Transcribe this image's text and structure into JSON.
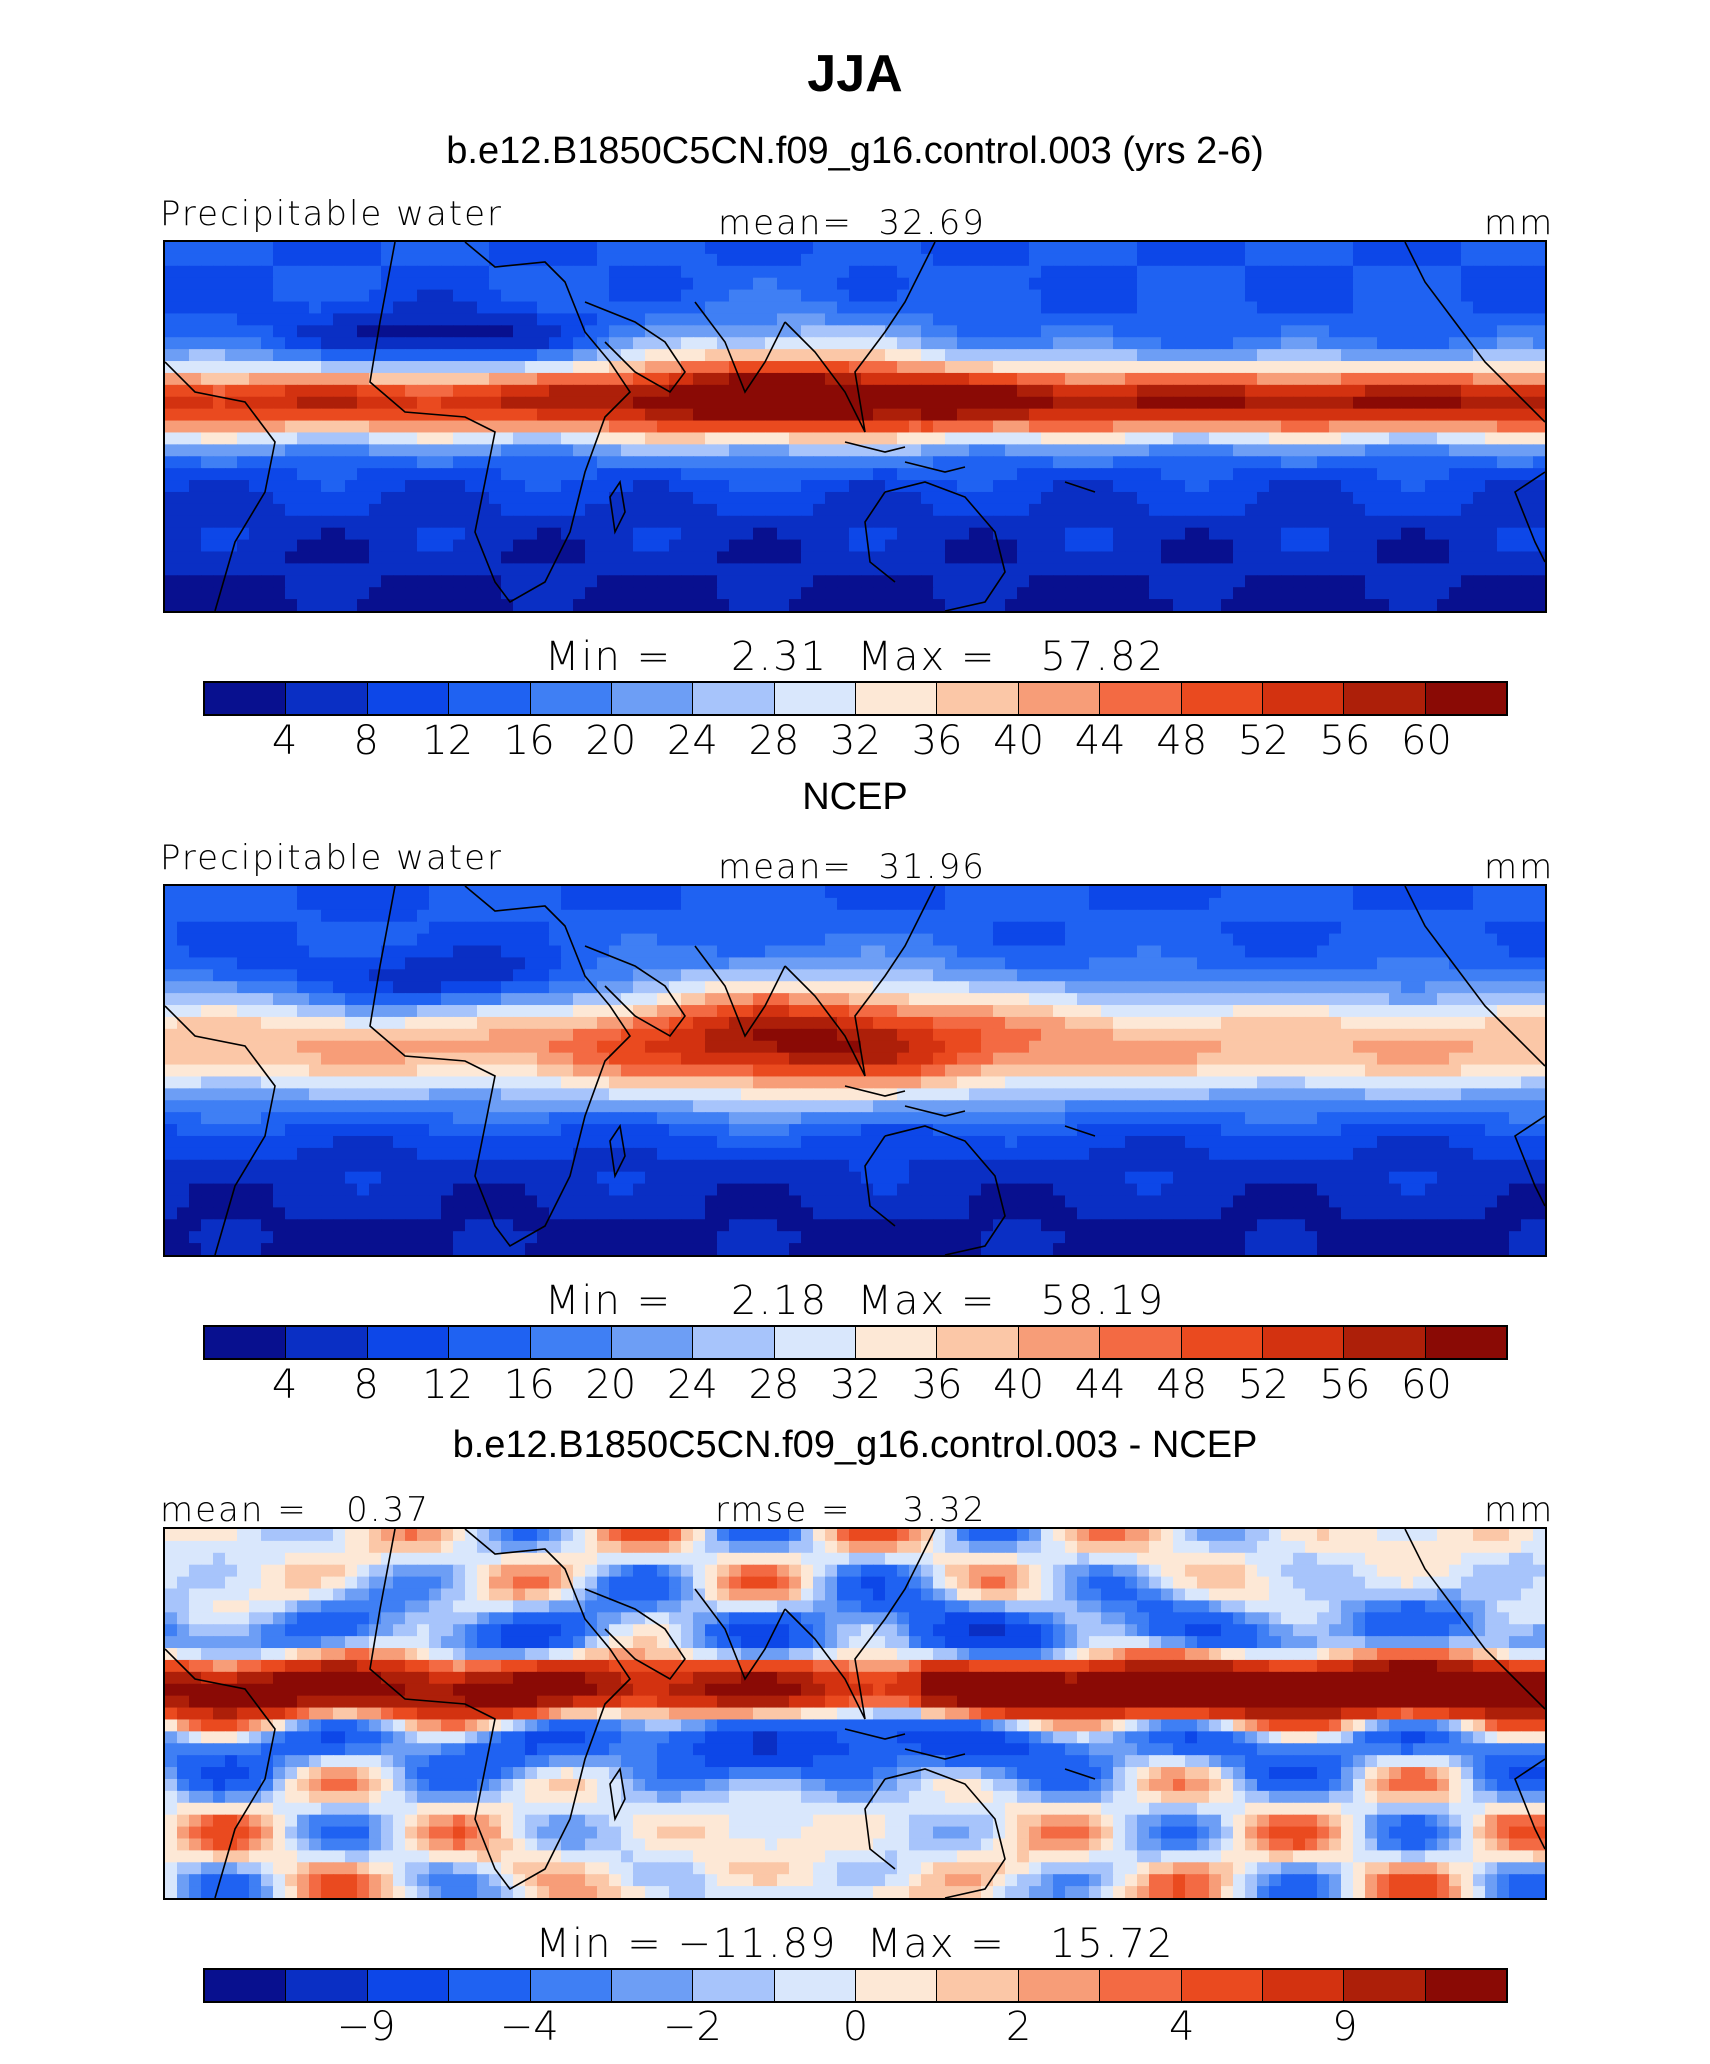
{
  "title": "JJA",
  "colors": [
    "#08108f",
    "#0a2fc4",
    "#0d47e8",
    "#1f62f2",
    "#3f7ff4",
    "#6d9ef5",
    "#a7c4fb",
    "#d9e7fc",
    "#fde8d6",
    "#fbc7a7",
    "#f79d78",
    "#f36a43",
    "#ea4a1f",
    "#d33210",
    "#ad1f09",
    "#8a0a05"
  ],
  "panels": [
    {
      "title": "b.e12.B1850C5CN.f09_g16.control.003 (yrs 2-6)",
      "left_label": "Precipitable water",
      "center_label": "mean=  32.69",
      "right_label": "mm",
      "minmax": "Min =    2.31  Max =   57.82",
      "ticks": [
        "4",
        "8",
        "12",
        "16",
        "20",
        "24",
        "28",
        "32",
        "36",
        "40",
        "44",
        "48",
        "52",
        "56",
        "60"
      ],
      "field": "model"
    },
    {
      "title": "NCEP",
      "left_label": "Precipitable water",
      "center_label": "mean=  31.96",
      "right_label": "mm",
      "minmax": "Min =    2.18  Max =   58.19",
      "ticks": [
        "4",
        "8",
        "12",
        "16",
        "20",
        "24",
        "28",
        "32",
        "36",
        "40",
        "44",
        "48",
        "52",
        "56",
        "60"
      ],
      "field": "obs"
    },
    {
      "title": "b.e12.B1850C5CN.f09_g16.control.003 - NCEP",
      "left_label": "mean =   0.37",
      "center_label": "rmse =    3.32",
      "right_label": "mm",
      "minmax": "Min = −11.89  Max =   15.72",
      "ticks": [
        "−9",
        "−4",
        "−2",
        "0",
        "2",
        "4",
        "9"
      ],
      "field": "diff"
    }
  ]
}
